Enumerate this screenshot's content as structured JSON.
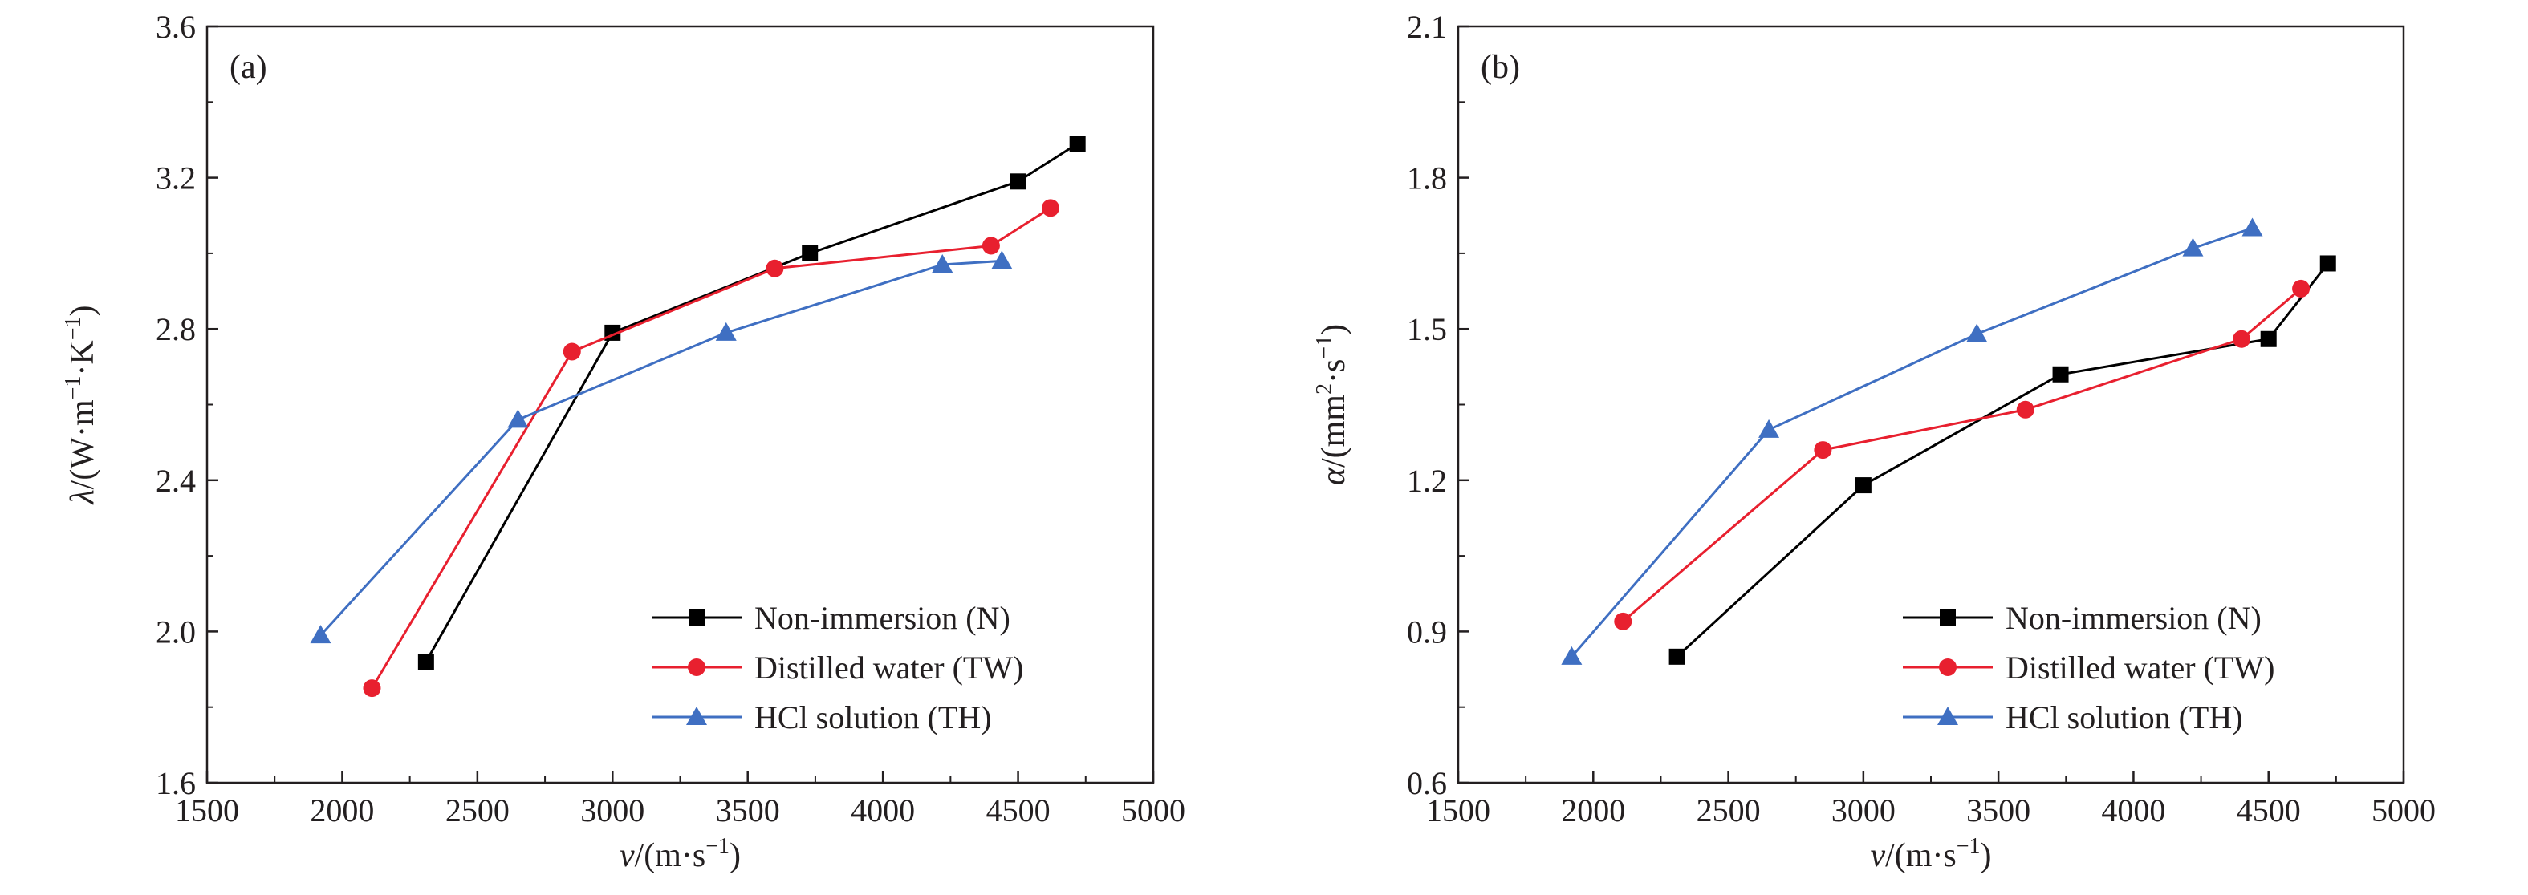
{
  "chart_data": [
    {
      "type": "line",
      "panel_label": "(a)",
      "xlabel": {
        "base": "v",
        "unit": "/(m·s",
        "exp": "−1",
        "close": ")"
      },
      "ylabel": {
        "symbol": "λ",
        "p1": "/(W·m",
        "e1": "−1",
        "p2": "·K",
        "e2": "−1",
        "close": ")"
      },
      "xlim": [
        1500,
        5000
      ],
      "ylim": [
        1.6,
        3.6
      ],
      "xticks": [
        "1500",
        "2000",
        "2500",
        "3000",
        "3500",
        "4000",
        "4500",
        "5000"
      ],
      "yticks": [
        "1.6",
        "2.0",
        "2.4",
        "2.8",
        "3.2",
        "3.6"
      ],
      "legend_position": "bottom-right",
      "series": [
        {
          "name": "Non-immersion (N)",
          "color": "#000000",
          "marker": "square",
          "x": [
            2310,
            3000,
            3730,
            4500,
            4720
          ],
          "y": [
            1.92,
            2.79,
            3.0,
            3.19,
            3.29
          ]
        },
        {
          "name": "Distilled water (TW)",
          "color": "#e8202f",
          "marker": "circle",
          "x": [
            2110,
            2850,
            3600,
            4400,
            4620
          ],
          "y": [
            1.85,
            2.74,
            2.96,
            3.02,
            3.12
          ]
        },
        {
          "name": "HCl solution (TH)",
          "color": "#3f6fc2",
          "marker": "triangle",
          "x": [
            1920,
            2650,
            3420,
            4220,
            4440
          ],
          "y": [
            1.99,
            2.56,
            2.79,
            2.97,
            2.98
          ]
        }
      ]
    },
    {
      "type": "line",
      "panel_label": "(b)",
      "xlabel": {
        "base": "v",
        "unit": "/(m·s",
        "exp": "−1",
        "close": ")"
      },
      "ylabel": {
        "symbol": "α",
        "p1": "/(mm",
        "e1": "2",
        "p2": "·s",
        "e2": "−1",
        "close": ")"
      },
      "xlim": [
        1500,
        5000
      ],
      "ylim": [
        0.6,
        2.1
      ],
      "xticks": [
        "1500",
        "2000",
        "2500",
        "3000",
        "3500",
        "4000",
        "4500",
        "5000"
      ],
      "yticks": [
        "0.6",
        "0.9",
        "1.2",
        "1.5",
        "1.8",
        "2.1"
      ],
      "legend_position": "bottom-right",
      "series": [
        {
          "name": "Non-immersion (N)",
          "color": "#000000",
          "marker": "square",
          "x": [
            2310,
            3000,
            3730,
            4500,
            4720
          ],
          "y": [
            0.85,
            1.19,
            1.41,
            1.48,
            1.63
          ]
        },
        {
          "name": "Distilled water (TW)",
          "color": "#e8202f",
          "marker": "circle",
          "x": [
            2110,
            2850,
            3600,
            4400,
            4620
          ],
          "y": [
            0.92,
            1.26,
            1.34,
            1.48,
            1.58
          ]
        },
        {
          "name": "HCl solution (TH)",
          "color": "#3f6fc2",
          "marker": "triangle",
          "x": [
            1920,
            2650,
            3420,
            4220,
            4440
          ],
          "y": [
            0.85,
            1.3,
            1.49,
            1.66,
            1.7
          ]
        }
      ]
    }
  ]
}
